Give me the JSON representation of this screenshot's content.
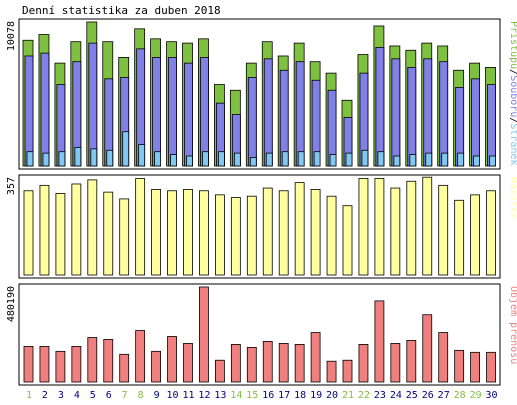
{
  "title": "Denní statistika za duben 2018",
  "colors": {
    "background": "#ffffff",
    "frame": "#000000",
    "bar_outline": "#000000",
    "pristupu": "#80c040",
    "souboru": "#8080e8",
    "stranek": "#80c8f0",
    "navstev": "#ffffa0",
    "objem": "#f08080",
    "weekend_label": "#80c040",
    "weekday_label": "#000080"
  },
  "chart_data": [
    {
      "type": "bar",
      "panel": "hits",
      "max_label": "10078",
      "ylim": [
        0,
        10078
      ],
      "legend": {
        "stranek": "Stránek",
        "sep1": "/",
        "souboru": "Souborů",
        "sep2": "/",
        "pristupu": "Přístupů"
      },
      "categories": [
        "1",
        "2",
        "3",
        "4",
        "5",
        "6",
        "7",
        "8",
        "9",
        "10",
        "11",
        "12",
        "13",
        "14",
        "15",
        "16",
        "17",
        "18",
        "19",
        "20",
        "21",
        "22",
        "23",
        "24",
        "25",
        "26",
        "27",
        "28",
        "29",
        "30"
      ],
      "weekend": [
        true,
        false,
        false,
        false,
        false,
        false,
        true,
        true,
        false,
        false,
        false,
        false,
        false,
        true,
        true,
        false,
        false,
        false,
        false,
        false,
        true,
        true,
        false,
        false,
        false,
        false,
        false,
        true,
        true,
        false
      ],
      "series": [
        {
          "name": "Přístupů",
          "color_key": "pristupu",
          "values": [
            8800,
            9200,
            7200,
            8700,
            10078,
            8700,
            7600,
            9600,
            8900,
            8700,
            8600,
            8900,
            5700,
            5300,
            7200,
            8700,
            7700,
            8600,
            7300,
            6500,
            4600,
            7800,
            9800,
            8400,
            8100,
            8600,
            8400,
            6700,
            7200,
            6900
          ]
        },
        {
          "name": "Souborů",
          "color_key": "souboru",
          "values": [
            7700,
            7900,
            5700,
            7300,
            8600,
            6100,
            6200,
            8200,
            7600,
            7600,
            7200,
            7600,
            4400,
            3600,
            6200,
            7500,
            6700,
            7300,
            6000,
            5300,
            3400,
            6500,
            8300,
            7500,
            6900,
            7500,
            7300,
            5500,
            6100,
            5700
          ]
        },
        {
          "name": "Stránek",
          "color_key": "stranek",
          "values": [
            1000,
            900,
            1000,
            1300,
            1200,
            1100,
            2400,
            1500,
            1000,
            800,
            700,
            1000,
            1000,
            900,
            600,
            900,
            1000,
            1000,
            1000,
            800,
            900,
            1100,
            1000,
            700,
            800,
            900,
            900,
            900,
            700,
            700
          ]
        }
      ]
    },
    {
      "type": "bar",
      "panel": "visits",
      "max_label": "357",
      "ylim": [
        0,
        357
      ],
      "legend": {
        "navstev": "Návštěv"
      },
      "categories": [
        "1",
        "2",
        "3",
        "4",
        "5",
        "6",
        "7",
        "8",
        "9",
        "10",
        "11",
        "12",
        "13",
        "14",
        "15",
        "16",
        "17",
        "18",
        "19",
        "20",
        "21",
        "22",
        "23",
        "24",
        "25",
        "26",
        "27",
        "28",
        "29",
        "30"
      ],
      "series": [
        {
          "name": "Návštěv",
          "color_key": "navstev",
          "values": [
            310,
            330,
            300,
            335,
            350,
            305,
            280,
            355,
            315,
            310,
            315,
            310,
            295,
            285,
            290,
            320,
            310,
            340,
            315,
            290,
            255,
            355,
            355,
            320,
            345,
            360,
            330,
            275,
            295,
            310
          ]
        }
      ]
    },
    {
      "type": "bar",
      "panel": "volume",
      "max_label": "480190",
      "ylim": [
        0,
        480190
      ],
      "legend": {
        "objem": "Objem přenosu"
      },
      "categories": [
        "1",
        "2",
        "3",
        "4",
        "5",
        "6",
        "7",
        "8",
        "9",
        "10",
        "11",
        "12",
        "13",
        "14",
        "15",
        "16",
        "17",
        "18",
        "19",
        "20",
        "21",
        "22",
        "23",
        "24",
        "25",
        "26",
        "27",
        "28",
        "29",
        "30"
      ],
      "series": [
        {
          "name": "Objem přenosu",
          "color_key": "objem",
          "values": [
            180000,
            180000,
            155000,
            180000,
            225000,
            215000,
            140000,
            260000,
            155000,
            230000,
            195000,
            480190,
            110000,
            190000,
            175000,
            205000,
            195000,
            190000,
            250000,
            105000,
            110000,
            190000,
            410000,
            195000,
            210000,
            340000,
            250000,
            160000,
            150000,
            150000
          ]
        }
      ]
    }
  ]
}
